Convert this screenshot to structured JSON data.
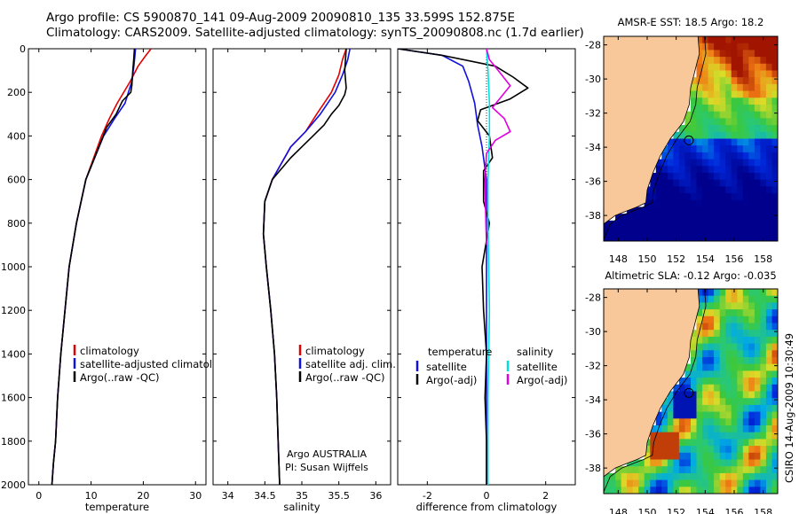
{
  "header": {
    "line1": "Argo profile: CS 5900870_141 09-Aug-2009 20090810_135 33.599S 152.875E",
    "line2": "Climatology: CARS2009. Satellite-adjusted climatology: synTS_20090808.nc (1.7d earlier)"
  },
  "side_label": "CSIRO 14-Aug-2009 10:30:49",
  "colors": {
    "climatology": "#e00000",
    "satellite": "#1010e0",
    "argo": "#000000",
    "sat_salinity": "#00e0e0",
    "argo_salinity": "#e000e0",
    "land": "#f8c89a"
  },
  "chart_data": [
    {
      "type": "line",
      "xlabel": "temperature",
      "xlim": [
        -2,
        32
      ],
      "xticks": [
        0,
        10,
        20,
        30
      ],
      "ylim": [
        2000,
        0
      ],
      "yticks": [
        0,
        200,
        400,
        600,
        800,
        1000,
        1200,
        1400,
        1600,
        1800,
        2000
      ],
      "legend_placement": "lower-right",
      "legend": [
        "climatology",
        "satellite-adjusted climatology",
        "Argo(..raw -QC)"
      ],
      "series": [
        {
          "name": "climatology",
          "color": "#e00000",
          "x": [
            21.5,
            20.5,
            19.0,
            17.5,
            15.0,
            13.5,
            12.0,
            9.0,
            7.2,
            5.8,
            5.0,
            4.2,
            3.6,
            3.2,
            2.8,
            2.5
          ],
          "y": [
            0,
            30,
            80,
            150,
            250,
            320,
            400,
            600,
            800,
            1000,
            1200,
            1400,
            1600,
            1800,
            1900,
            2000
          ]
        },
        {
          "name": "satellite-adjusted climatology",
          "color": "#1010e0",
          "x": [
            18.5,
            18.4,
            18.2,
            17.8,
            16.5,
            14.5,
            12.4,
            9.0,
            7.2,
            5.8,
            5.0,
            4.2,
            3.6,
            3.2,
            2.8,
            2.5
          ],
          "y": [
            0,
            30,
            80,
            150,
            250,
            320,
            400,
            600,
            800,
            1000,
            1200,
            1400,
            1600,
            1800,
            1900,
            2000
          ]
        },
        {
          "name": "Argo(..raw -QC)",
          "color": "#000000",
          "x": [
            18.3,
            18.2,
            18.0,
            17.8,
            17.6,
            16.0,
            14.8,
            13.0,
            12.0,
            9.0,
            7.2,
            5.8,
            5.0,
            4.2,
            3.6,
            3.2,
            2.8,
            2.5
          ],
          "y": [
            0,
            40,
            100,
            170,
            200,
            240,
            300,
            360,
            420,
            600,
            800,
            1000,
            1200,
            1400,
            1600,
            1800,
            1900,
            2000
          ]
        }
      ]
    },
    {
      "type": "line",
      "xlabel": "salinity",
      "xlim": [
        33.8,
        36.2
      ],
      "xticks": [
        34,
        34.5,
        35,
        35.5,
        36
      ],
      "ylim": [
        2000,
        0
      ],
      "legend_placement": "lower-right",
      "legend": [
        "climatology",
        "satellite adj. clim.",
        "Argo(..raw -QC)"
      ],
      "annotation": [
        "Argo AUSTRALIA",
        "PI: Susan Wijffels"
      ],
      "series": [
        {
          "name": "climatology",
          "color": "#e00000",
          "x": [
            35.6,
            35.55,
            35.5,
            35.4,
            35.2,
            35.05,
            34.85,
            34.6,
            34.5,
            34.48,
            34.52,
            34.58,
            34.63,
            34.66,
            34.68,
            34.7
          ],
          "y": [
            0,
            50,
            120,
            200,
            300,
            380,
            450,
            600,
            700,
            850,
            1000,
            1200,
            1400,
            1600,
            1800,
            2000
          ]
        },
        {
          "name": "satellite adj. clim.",
          "color": "#1010e0",
          "x": [
            35.65,
            35.62,
            35.55,
            35.45,
            35.25,
            35.05,
            34.85,
            34.6,
            34.5,
            34.48,
            34.52,
            34.58,
            34.63,
            34.66,
            34.68,
            34.7
          ],
          "y": [
            0,
            50,
            120,
            200,
            300,
            380,
            450,
            600,
            700,
            850,
            1000,
            1200,
            1400,
            1600,
            1800,
            2000
          ]
        },
        {
          "name": "Argo(..raw -QC)",
          "color": "#000000",
          "x": [
            35.6,
            35.58,
            35.6,
            35.58,
            35.5,
            35.4,
            35.3,
            35.15,
            35.0,
            34.85,
            34.6,
            34.5,
            34.48,
            34.52,
            34.58,
            34.63,
            34.66,
            34.68,
            34.7
          ],
          "y": [
            0,
            100,
            180,
            210,
            260,
            300,
            350,
            400,
            450,
            500,
            600,
            700,
            850,
            1000,
            1200,
            1400,
            1600,
            1800,
            2000
          ]
        }
      ]
    },
    {
      "type": "line",
      "xlabel": "difference from climatology",
      "xlim": [
        -3,
        3
      ],
      "xticks": [
        -2,
        0,
        2
      ],
      "ylim": [
        2000,
        0
      ],
      "legend_placement": "lower-center",
      "legend_groups": [
        {
          "title": "temperature",
          "items": [
            "satellite",
            "Argo(-adj)"
          ]
        },
        {
          "title": "salinity",
          "items": [
            "satellite",
            "Argo(-adj)"
          ]
        }
      ],
      "series": [
        {
          "name": "temperature satellite",
          "color": "#1010e0",
          "x": [
            -3.0,
            -1.5,
            -0.8,
            -0.6,
            -0.4,
            -0.3,
            -0.15,
            0.0,
            0.0,
            0.0
          ],
          "y": [
            0,
            30,
            80,
            150,
            250,
            350,
            450,
            600,
            1000,
            2000
          ]
        },
        {
          "name": "temperature Argo(-adj)",
          "color": "#000000",
          "x": [
            -3.0,
            -1.5,
            0.3,
            0.9,
            1.4,
            0.8,
            -0.2,
            -0.3,
            0.1,
            0.2,
            -0.1,
            -0.1,
            0.1,
            -0.15,
            -0.1,
            0.0,
            -0.05,
            0.0,
            0.0
          ],
          "y": [
            0,
            30,
            80,
            130,
            180,
            230,
            280,
            330,
            400,
            500,
            560,
            700,
            800,
            1000,
            1200,
            1400,
            1600,
            1800,
            2000
          ]
        },
        {
          "name": "salinity satellite",
          "color": "#00e0e0",
          "x": [
            0.0,
            0.05,
            0.1,
            0.1,
            0.05,
            0.05,
            0.1,
            0.05,
            0.05
          ],
          "y": [
            0,
            100,
            250,
            400,
            600,
            800,
            1200,
            1600,
            2000
          ]
        },
        {
          "name": "salinity Argo(-adj)",
          "color": "#e000e0",
          "x": [
            0.0,
            0.1,
            0.4,
            0.8,
            0.5,
            0.2,
            0.6,
            0.8,
            0.3,
            0.0,
            -0.05,
            -0.02,
            0.0
          ],
          "y": [
            0,
            50,
            100,
            170,
            220,
            270,
            320,
            380,
            420,
            480,
            600,
            800,
            900
          ]
        }
      ]
    },
    {
      "type": "heatmap",
      "title": "AMSR-E SST: 18.5 Argo: 18.2",
      "xlim": [
        147,
        159
      ],
      "ylim": [
        -39.5,
        -27.5
      ],
      "xticks": [
        148,
        150,
        152,
        154,
        156,
        158
      ],
      "yticks": [
        -28,
        -30,
        -32,
        -34,
        -36,
        -38
      ],
      "marker": {
        "lon": 152.875,
        "lat": -33.599
      }
    },
    {
      "type": "heatmap",
      "title": "Altimetric SLA: -0.12 Argo: -0.035",
      "xlim": [
        147,
        159
      ],
      "ylim": [
        -39.5,
        -27.5
      ],
      "xticks": [
        148,
        150,
        152,
        154,
        156,
        158
      ],
      "yticks": [
        -28,
        -30,
        -32,
        -34,
        -36,
        -38
      ],
      "marker": {
        "lon": 152.875,
        "lat": -33.599
      }
    }
  ]
}
